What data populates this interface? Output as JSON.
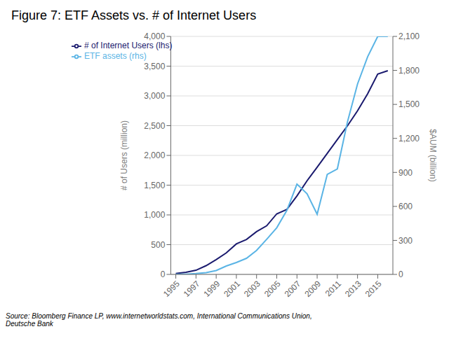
{
  "chart_data": {
    "type": "line",
    "title": "Figure 7: ETF Assets vs. # of Internet Users",
    "annotations": [
      "Source: Bloomberg Finance LP, www.internetworldstats.com, International Communications Union,\nDeutsche Bank"
    ],
    "ylabel": "# of Users (million)",
    "y2label": "$AUM (billion)",
    "x": [
      1995,
      1996,
      1997,
      1998,
      1999,
      2000,
      2001,
      2002,
      2003,
      2004,
      2005,
      2006,
      2007,
      2008,
      2009,
      2010,
      2011,
      2012,
      2013,
      2014,
      2015,
      2016
    ],
    "series": [
      {
        "name": "# of Internet Users (lhs)",
        "color": "#1a1a6e",
        "values": [
          16,
          36,
          70,
          147,
          248,
          361,
          513,
          587,
          719,
          817,
          1018,
          1093,
          1319,
          1574,
          1802,
          2034,
          2267,
          2497,
          2749,
          3035,
          3366,
          3424
        ]
      },
      {
        "name": "ETF assets (rhs)",
        "color": "#5ab4e5",
        "axis": "y2",
        "values": [
          1,
          2,
          8,
          16,
          34,
          74,
          105,
          142,
          212,
          310,
          412,
          565,
          796,
          711,
          531,
          882,
          931,
          1345,
          1680,
          1920,
          2100,
          2100
        ]
      }
    ],
    "xlim": [
      1994.5,
      2016.5
    ],
    "xticks": [
      1995,
      1997,
      1999,
      2001,
      2003,
      2005,
      2007,
      2009,
      2011,
      2013,
      2015
    ],
    "ylim": [
      0,
      4000
    ],
    "yticks": [
      0,
      500,
      {
        "value": 1000,
        "label": "1,000"
      },
      {
        "value": 1500,
        "label": "1,500"
      },
      {
        "value": 2000,
        "label": "2,000"
      },
      {
        "value": 2500,
        "label": "2,500"
      },
      {
        "value": 3000,
        "label": "3,000"
      },
      {
        "value": 3500,
        "label": "3,500"
      },
      {
        "value": 4000,
        "label": "4,000"
      }
    ],
    "y2lim": [
      0,
      2100
    ],
    "y2ticks": [
      0,
      300,
      600,
      900,
      {
        "value": 1200,
        "label": "1,200"
      },
      {
        "value": 1500,
        "label": "1,500"
      },
      {
        "value": 1800,
        "label": "1,800"
      },
      {
        "value": 2100,
        "label": "2,100"
      }
    ],
    "grid": "y",
    "legend": "upper left"
  }
}
